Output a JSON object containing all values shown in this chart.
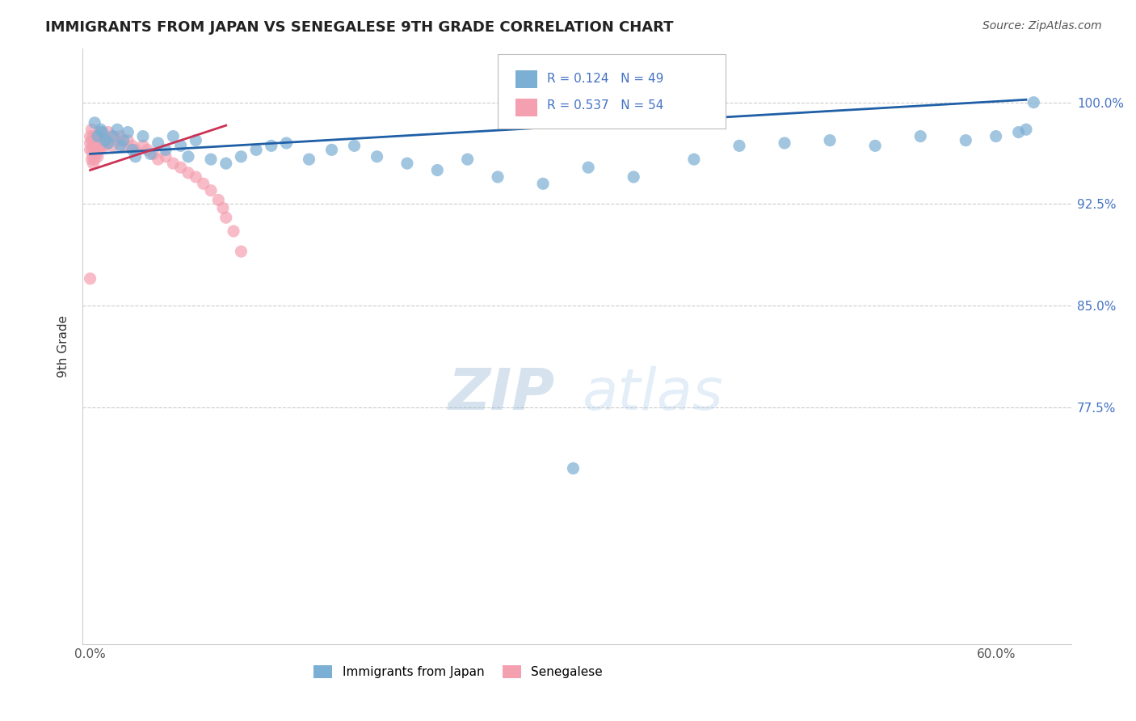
{
  "title": "IMMIGRANTS FROM JAPAN VS SENEGALESE 9TH GRADE CORRELATION CHART",
  "source": "Source: ZipAtlas.com",
  "ylabel": "9th Grade",
  "ytick_labels": [
    "100.0%",
    "92.5%",
    "85.0%",
    "77.5%"
  ],
  "ytick_values": [
    1.0,
    0.925,
    0.85,
    0.775
  ],
  "ylim": [
    0.6,
    1.04
  ],
  "xlim": [
    -0.005,
    0.65
  ],
  "blue_color": "#7bafd4",
  "pink_color": "#f4a0b0",
  "trendline_blue": "#1f5fa6",
  "trendline_pink": "#cc3355",
  "blue_line_x": [
    0.0,
    0.62
  ],
  "blue_line_y": [
    0.962,
    1.002
  ],
  "pink_line_x": [
    0.0,
    0.09
  ],
  "pink_line_y": [
    0.95,
    0.983
  ],
  "japan_x": [
    0.003,
    0.005,
    0.007,
    0.008,
    0.01,
    0.012,
    0.015,
    0.018,
    0.02,
    0.022,
    0.025,
    0.028,
    0.03,
    0.035,
    0.04,
    0.045,
    0.05,
    0.055,
    0.06,
    0.065,
    0.07,
    0.08,
    0.09,
    0.1,
    0.11,
    0.12,
    0.13,
    0.145,
    0.16,
    0.175,
    0.19,
    0.21,
    0.23,
    0.25,
    0.27,
    0.3,
    0.33,
    0.36,
    0.4,
    0.43,
    0.46,
    0.49,
    0.52,
    0.55,
    0.58,
    0.6,
    0.615,
    0.62,
    0.625
  ],
  "japan_y": [
    0.985,
    0.975,
    0.98,
    0.978,
    0.972,
    0.97,
    0.975,
    0.98,
    0.968,
    0.972,
    0.978,
    0.965,
    0.96,
    0.975,
    0.962,
    0.97,
    0.965,
    0.975,
    0.968,
    0.96,
    0.972,
    0.958,
    0.955,
    0.96,
    0.965,
    0.968,
    0.97,
    0.958,
    0.965,
    0.968,
    0.96,
    0.955,
    0.95,
    0.958,
    0.945,
    0.94,
    0.952,
    0.945,
    0.958,
    0.968,
    0.97,
    0.972,
    0.968,
    0.975,
    0.972,
    0.975,
    0.978,
    0.98,
    1.0
  ],
  "japan_outlier_x": [
    0.32
  ],
  "japan_outlier_y": [
    0.73
  ],
  "senegal_x": [
    0.0,
    0.0,
    0.0,
    0.001,
    0.001,
    0.001,
    0.001,
    0.002,
    0.002,
    0.002,
    0.002,
    0.003,
    0.003,
    0.003,
    0.004,
    0.004,
    0.005,
    0.005,
    0.005,
    0.006,
    0.006,
    0.007,
    0.007,
    0.008,
    0.008,
    0.009,
    0.01,
    0.01,
    0.012,
    0.012,
    0.015,
    0.015,
    0.018,
    0.02,
    0.022,
    0.025,
    0.028,
    0.03,
    0.035,
    0.038,
    0.042,
    0.045,
    0.05,
    0.055,
    0.06,
    0.065,
    0.07,
    0.075,
    0.08,
    0.085,
    0.088,
    0.09,
    0.095,
    0.1
  ],
  "senegal_y": [
    0.975,
    0.97,
    0.965,
    0.98,
    0.972,
    0.965,
    0.958,
    0.975,
    0.968,
    0.96,
    0.955,
    0.972,
    0.965,
    0.958,
    0.97,
    0.962,
    0.975,
    0.968,
    0.96,
    0.972,
    0.965,
    0.978,
    0.97,
    0.975,
    0.968,
    0.972,
    0.975,
    0.968,
    0.978,
    0.97,
    0.975,
    0.968,
    0.972,
    0.975,
    0.968,
    0.972,
    0.968,
    0.965,
    0.968,
    0.965,
    0.962,
    0.958,
    0.96,
    0.955,
    0.952,
    0.948,
    0.945,
    0.94,
    0.935,
    0.928,
    0.922,
    0.915,
    0.905,
    0.89
  ],
  "senegal_outlier_x": [
    0.0
  ],
  "senegal_outlier_y": [
    0.87
  ]
}
